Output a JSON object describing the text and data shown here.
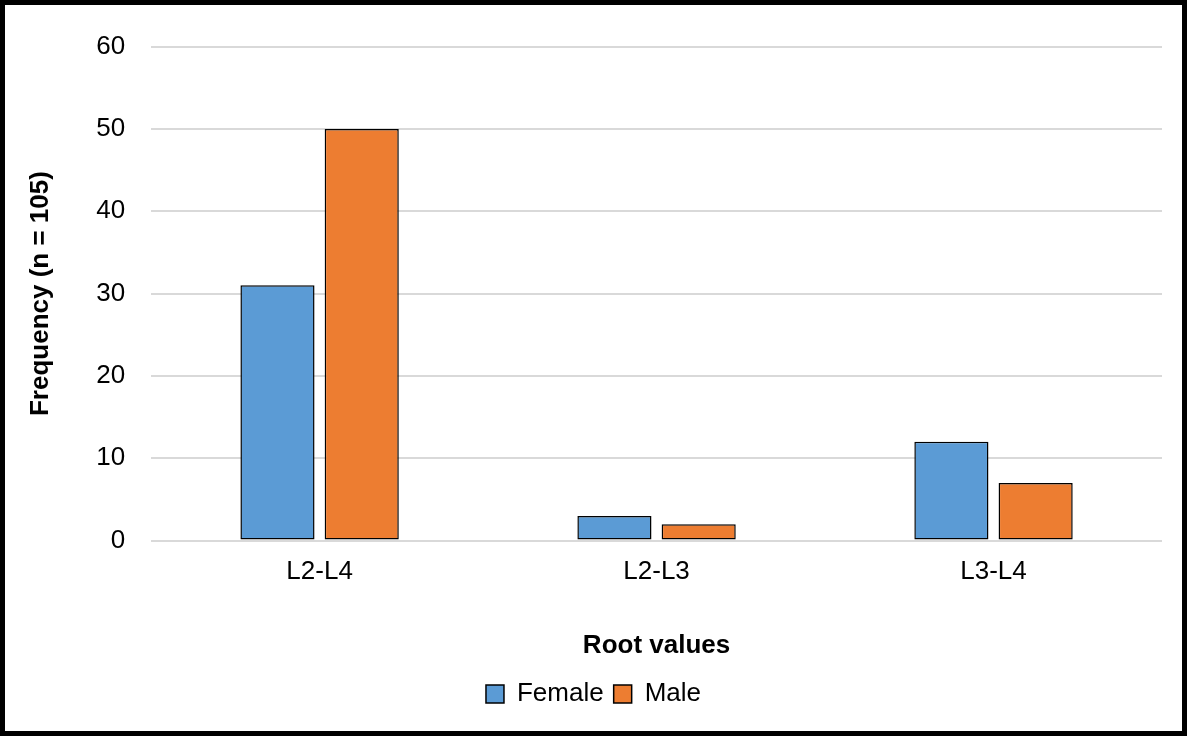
{
  "chart_data": {
    "type": "bar",
    "xlabel": "Root values",
    "ylabel": "Frequency (n = 105)",
    "categories": [
      "L2-L4",
      "L2-L3",
      "L3-L4"
    ],
    "series": [
      {
        "name": "Female",
        "color": "#5b9bd5",
        "values": [
          31,
          3,
          12
        ]
      },
      {
        "name": "Male",
        "color": "#ed7d31",
        "values": [
          50,
          2,
          7
        ]
      }
    ],
    "ylim": [
      0,
      60
    ],
    "yticks": [
      0,
      10,
      20,
      30,
      40,
      50,
      60
    ],
    "grid": "y",
    "legend": "bottom"
  }
}
